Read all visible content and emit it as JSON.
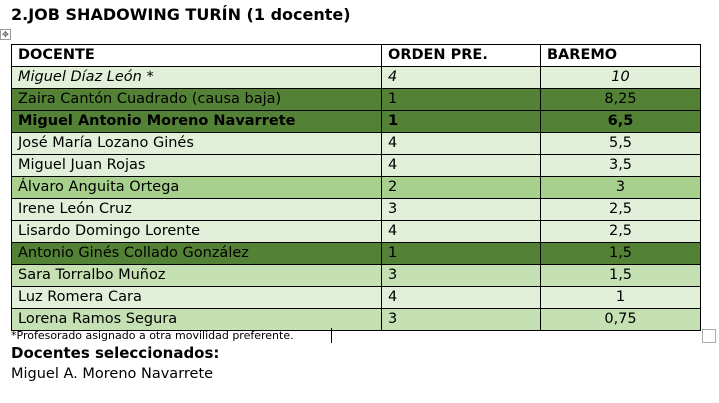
{
  "title": "2.JOB SHADOWING TURÍN (1 docente)",
  "table": {
    "headers": [
      "DOCENTE",
      "ORDEN PRE.",
      "BAREMO"
    ],
    "rows": [
      {
        "docente": "Miguel Díaz León *",
        "orden": "4",
        "baremo": "10",
        "color": "#e2efd9",
        "style": "italic"
      },
      {
        "docente": "Zaira Cantón Cuadrado (causa baja)",
        "orden": "1",
        "baremo": "8,25",
        "color": "#538135",
        "style": "normal"
      },
      {
        "docente": "Miguel Antonio Moreno Navarrete",
        "orden": "1",
        "baremo": "6,5",
        "color": "#538135",
        "style": "bold"
      },
      {
        "docente": "José María Lozano Ginés",
        "orden": "4",
        "baremo": "5,5",
        "color": "#e2efd9",
        "style": "normal"
      },
      {
        "docente": "Miguel Juan Rojas",
        "orden": "4",
        "baremo": "3,5",
        "color": "#e2efd9",
        "style": "normal"
      },
      {
        "docente": "Álvaro Anguita Ortega",
        "orden": "2",
        "baremo": "3",
        "color": "#a8d08d",
        "style": "normal"
      },
      {
        "docente": "Irene León Cruz",
        "orden": "3",
        "baremo": "2,5",
        "color": "#e2efd9",
        "style": "normal"
      },
      {
        "docente": "Lisardo Domingo Lorente",
        "orden": "4",
        "baremo": "2,5",
        "color": "#e2efd9",
        "style": "normal"
      },
      {
        "docente": "Antonio Ginés Collado González",
        "orden": "1",
        "baremo": "1,5",
        "color": "#538135",
        "style": "normal"
      },
      {
        "docente": "Sara Torralbo Muñoz",
        "orden": "3",
        "baremo": "1,5",
        "color": "#c5e0b3",
        "style": "normal"
      },
      {
        "docente": "Luz Romera Cara",
        "orden": "4",
        "baremo": "1",
        "color": "#e2efd9",
        "style": "normal"
      },
      {
        "docente": "Lorena Ramos Segura",
        "orden": "3",
        "baremo": "0,75",
        "color": "#c5e0b3",
        "style": "normal"
      }
    ]
  },
  "footnote": "*Profesorado asignado a otra movilidad preferente.",
  "selected_label": "Docentes seleccionados:",
  "selected_name": "Miguel A. Moreno Navarrete"
}
